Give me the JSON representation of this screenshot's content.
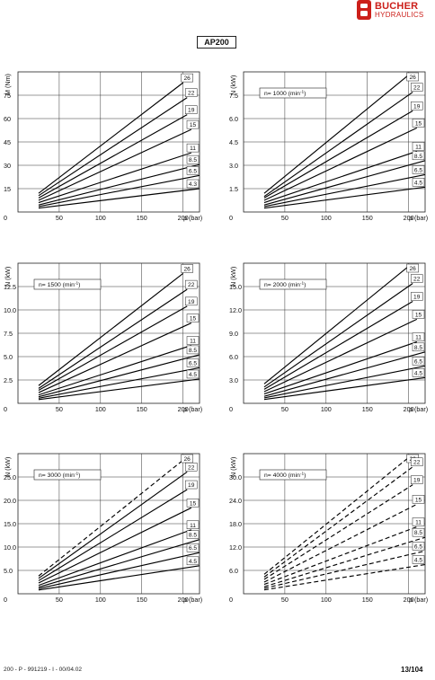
{
  "brand": {
    "name": "BUCHER",
    "sub": "HYDRAULICS",
    "color": "#cc1f1a"
  },
  "document": {
    "title": "AP200",
    "footer_left": "200 - P - 991219 - I - 00/04.02",
    "footer_right": "13/104"
  },
  "chart_data": [
    {
      "type": "line",
      "ylabel": "M (Nm)",
      "xlabel": "p (bar)",
      "annotation": "",
      "x_ticks": [
        "50",
        "100",
        "150",
        "200"
      ],
      "y_ticks": [
        "0",
        "15",
        "30",
        "45",
        "60",
        "75"
      ],
      "y_tick_values": [
        0,
        15,
        30,
        45,
        60,
        75
      ],
      "xlim": [
        0,
        220
      ],
      "ylim": [
        0,
        90
      ],
      "line_style": "solid",
      "series": [
        {
          "name": "26",
          "x": [
            25,
            200
          ],
          "y": [
            12.0,
            83.0
          ]
        },
        {
          "name": "22",
          "x": [
            25,
            205
          ],
          "y": [
            10.5,
            73.5
          ]
        },
        {
          "name": "19",
          "x": [
            25,
            205
          ],
          "y": [
            9.0,
            62.5
          ]
        },
        {
          "name": "15",
          "x": [
            25,
            210
          ],
          "y": [
            7.5,
            53.0
          ]
        },
        {
          "name": "11",
          "x": [
            25,
            210
          ],
          "y": [
            6.0,
            38.0
          ]
        },
        {
          "name": "8.5",
          "x": [
            25,
            220
          ],
          "y": [
            4.5,
            30.5
          ]
        },
        {
          "name": "6.5",
          "x": [
            25,
            220
          ],
          "y": [
            3.5,
            23.5
          ]
        },
        {
          "name": "4.3",
          "x": [
            25,
            220
          ],
          "y": [
            2.5,
            15.0
          ]
        }
      ]
    },
    {
      "type": "line",
      "ylabel": "N (kW)",
      "xlabel": "p (bar)",
      "annotation": "n= 1000 (min",
      "annotation_sup": "-1",
      "annotation_end": ")",
      "x_ticks": [
        "50",
        "100",
        "150",
        "200"
      ],
      "y_ticks": [
        "0",
        "1.5",
        "3.0",
        "4.5",
        "6.0",
        "7.5"
      ],
      "y_tick_values": [
        0,
        1.5,
        3.0,
        4.5,
        6.0,
        7.5
      ],
      "xlim": [
        0,
        220
      ],
      "ylim": [
        0,
        9
      ],
      "line_style": "solid",
      "series": [
        {
          "name": "26",
          "x": [
            25,
            200
          ],
          "y": [
            1.2,
            8.8
          ]
        },
        {
          "name": "22",
          "x": [
            25,
            205
          ],
          "y": [
            1.0,
            7.7
          ]
        },
        {
          "name": "19",
          "x": [
            25,
            205
          ],
          "y": [
            0.9,
            6.5
          ]
        },
        {
          "name": "15",
          "x": [
            25,
            210
          ],
          "y": [
            0.75,
            5.4
          ]
        },
        {
          "name": "11",
          "x": [
            25,
            210
          ],
          "y": [
            0.6,
            3.9
          ]
        },
        {
          "name": "8.5",
          "x": [
            25,
            220
          ],
          "y": [
            0.45,
            3.3
          ]
        },
        {
          "name": "6.5",
          "x": [
            25,
            220
          ],
          "y": [
            0.35,
            2.4
          ]
        },
        {
          "name": "4.5",
          "x": [
            25,
            220
          ],
          "y": [
            0.25,
            1.6
          ]
        }
      ]
    },
    {
      "type": "line",
      "ylabel": "N (kW)",
      "xlabel": "p (bar)",
      "annotation": "n= 1500 (min",
      "annotation_sup": "-1",
      "annotation_end": ")",
      "x_ticks": [
        "50",
        "100",
        "150",
        "200"
      ],
      "y_ticks": [
        "0",
        "2.5",
        "5.0",
        "7.5",
        "10.0",
        "12.5"
      ],
      "y_tick_values": [
        0,
        2.5,
        5.0,
        7.5,
        10.0,
        12.5
      ],
      "xlim": [
        0,
        220
      ],
      "ylim": [
        0,
        15
      ],
      "line_style": "solid",
      "series": [
        {
          "name": "26",
          "x": [
            25,
            200
          ],
          "y": [
            1.9,
            13.9
          ]
        },
        {
          "name": "22",
          "x": [
            25,
            205
          ],
          "y": [
            1.6,
            12.2
          ]
        },
        {
          "name": "19",
          "x": [
            25,
            205
          ],
          "y": [
            1.4,
            10.4
          ]
        },
        {
          "name": "15",
          "x": [
            25,
            210
          ],
          "y": [
            1.15,
            8.6
          ]
        },
        {
          "name": "11",
          "x": [
            25,
            210
          ],
          "y": [
            0.9,
            6.2
          ]
        },
        {
          "name": "8.5",
          "x": [
            25,
            220
          ],
          "y": [
            0.7,
            5.2
          ]
        },
        {
          "name": "6.5",
          "x": [
            25,
            220
          ],
          "y": [
            0.55,
            3.8
          ]
        },
        {
          "name": "4.5",
          "x": [
            25,
            220
          ],
          "y": [
            0.4,
            2.6
          ]
        }
      ]
    },
    {
      "type": "line",
      "ylabel": "N (kW)",
      "xlabel": "p (bar)",
      "annotation": "n= 2000 (min",
      "annotation_sup": "-1",
      "annotation_end": ")",
      "x_ticks": [
        "50",
        "100",
        "150",
        "200"
      ],
      "y_ticks": [
        "0",
        "3.0",
        "6.0",
        "9.0",
        "12.0",
        "15.0"
      ],
      "y_tick_values": [
        0,
        3.0,
        6.0,
        9.0,
        12.0,
        15.0
      ],
      "xlim": [
        0,
        220
      ],
      "ylim": [
        0,
        18
      ],
      "line_style": "solid",
      "series": [
        {
          "name": "26",
          "x": [
            25,
            200
          ],
          "y": [
            2.5,
            17.6
          ]
        },
        {
          "name": "22",
          "x": [
            25,
            205
          ],
          "y": [
            2.1,
            15.4
          ]
        },
        {
          "name": "19",
          "x": [
            25,
            205
          ],
          "y": [
            1.8,
            13.1
          ]
        },
        {
          "name": "15",
          "x": [
            25,
            210
          ],
          "y": [
            1.5,
            10.8
          ]
        },
        {
          "name": "11",
          "x": [
            25,
            210
          ],
          "y": [
            1.2,
            7.9
          ]
        },
        {
          "name": "8.5",
          "x": [
            25,
            220
          ],
          "y": [
            0.9,
            6.6
          ]
        },
        {
          "name": "6.5",
          "x": [
            25,
            220
          ],
          "y": [
            0.7,
            4.8
          ]
        },
        {
          "name": "4.5",
          "x": [
            25,
            220
          ],
          "y": [
            0.5,
            3.3
          ]
        }
      ]
    },
    {
      "type": "line",
      "ylabel": "N (kW)",
      "xlabel": "p (bar)",
      "annotation": "n= 3000 (min",
      "annotation_sup": "-1",
      "annotation_end": ")",
      "x_ticks": [
        "50",
        "100",
        "150",
        "200"
      ],
      "y_ticks": [
        "0",
        "5.0",
        "10.0",
        "15.0",
        "20.0",
        "25.0"
      ],
      "y_tick_values": [
        0,
        5.0,
        10.0,
        15.0,
        20.0,
        25.0
      ],
      "xlim": [
        0,
        220
      ],
      "ylim": [
        0,
        30
      ],
      "line_style": "solid",
      "dashed_series": [
        "26"
      ],
      "series": [
        {
          "name": "26",
          "x": [
            25,
            200
          ],
          "y": [
            3.8,
            28.6
          ]
        },
        {
          "name": "22",
          "x": [
            25,
            205
          ],
          "y": [
            3.3,
            26.1
          ]
        },
        {
          "name": "19",
          "x": [
            25,
            205
          ],
          "y": [
            2.8,
            22.3
          ]
        },
        {
          "name": "15",
          "x": [
            25,
            210
          ],
          "y": [
            2.3,
            18.4
          ]
        },
        {
          "name": "11",
          "x": [
            25,
            210
          ],
          "y": [
            1.8,
            13.7
          ]
        },
        {
          "name": "8.5",
          "x": [
            25,
            220
          ],
          "y": [
            1.4,
            11.6
          ]
        },
        {
          "name": "6.5",
          "x": [
            25,
            220
          ],
          "y": [
            1.1,
            8.8
          ]
        },
        {
          "name": "4.5",
          "x": [
            25,
            220
          ],
          "y": [
            0.8,
            6.0
          ]
        }
      ]
    },
    {
      "type": "line",
      "ylabel": "N (kW)",
      "xlabel": "p (bar)",
      "annotation": "n= 4000 (min",
      "annotation_sup": "-1",
      "annotation_end": ")",
      "x_ticks": [
        "50",
        "100",
        "150",
        "200"
      ],
      "y_ticks": [
        "0",
        "6.0",
        "12.0",
        "18.0",
        "24.0",
        "30.0"
      ],
      "y_tick_values": [
        0,
        6.0,
        12.0,
        18.0,
        24.0,
        30.0
      ],
      "xlim": [
        0,
        220
      ],
      "ylim": [
        0,
        36
      ],
      "line_style": "dashed",
      "series": [
        {
          "name": "26",
          "x": [
            25,
            200
          ],
          "y": [
            5.0,
            35.0
          ]
        },
        {
          "name": "22",
          "x": [
            25,
            205
          ],
          "y": [
            4.3,
            32.6
          ]
        },
        {
          "name": "19",
          "x": [
            25,
            205
          ],
          "y": [
            3.7,
            28.0
          ]
        },
        {
          "name": "15",
          "x": [
            25,
            210
          ],
          "y": [
            3.0,
            23.0
          ]
        },
        {
          "name": "11",
          "x": [
            25,
            210
          ],
          "y": [
            2.4,
            17.2
          ]
        },
        {
          "name": "8.5",
          "x": [
            25,
            220
          ],
          "y": [
            1.8,
            14.5
          ]
        },
        {
          "name": "6.5",
          "x": [
            25,
            220
          ],
          "y": [
            1.4,
            11.0
          ]
        },
        {
          "name": "4.5",
          "x": [
            25,
            220
          ],
          "y": [
            1.0,
            7.5
          ]
        }
      ]
    }
  ]
}
